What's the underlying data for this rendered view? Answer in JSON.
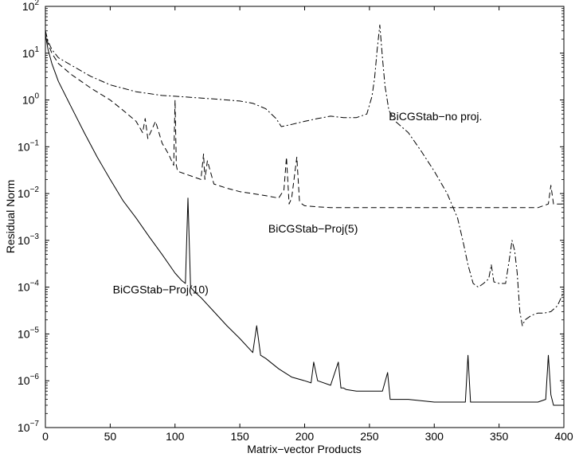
{
  "chart_data": {
    "type": "line",
    "title": "",
    "xlabel": "Matrix−vector Products",
    "ylabel": "Residual Norm",
    "xlim": [
      0,
      400
    ],
    "ylim": [
      1e-07,
      100
    ],
    "yscale": "log",
    "grid": false,
    "x_ticks": [
      "0",
      "50",
      "100",
      "150",
      "200",
      "250",
      "300",
      "350",
      "400"
    ],
    "y_tick_base": "10",
    "y_tick_exponents": [
      "−7",
      "−6",
      "−5",
      "−4",
      "−3",
      "−2",
      "−1",
      "0",
      "1",
      "2"
    ],
    "series": [
      {
        "name": "BiCGStab−no proj.",
        "style": "dashdot",
        "x": [
          0,
          2,
          5,
          10,
          20,
          35,
          50,
          70,
          90,
          100,
          110,
          130,
          150,
          160,
          170,
          178,
          182,
          190,
          200,
          210,
          220,
          230,
          240,
          248,
          252,
          254,
          256,
          258,
          260,
          262,
          265,
          270,
          280,
          290,
          300,
          310,
          318,
          322,
          326,
          330,
          334,
          338,
          342,
          344,
          346,
          350,
          355,
          358,
          360,
          362,
          364,
          366,
          368,
          370,
          375,
          380,
          385,
          390,
          395,
          400
        ],
        "y": [
          30,
          18,
          12,
          8,
          5.5,
          3.2,
          2.1,
          1.5,
          1.25,
          1.2,
          1.15,
          1.05,
          0.95,
          0.85,
          0.65,
          0.4,
          0.27,
          0.3,
          0.35,
          0.4,
          0.45,
          0.42,
          0.42,
          0.5,
          1.2,
          3.0,
          12,
          40,
          8,
          2.0,
          0.6,
          0.35,
          0.2,
          0.08,
          0.03,
          0.01,
          0.003,
          0.001,
          0.0003,
          0.00012,
          0.0001,
          0.00012,
          0.00015,
          0.0003,
          0.00013,
          0.00012,
          0.00012,
          0.0004,
          0.001,
          0.0006,
          0.0002,
          3e-05,
          1.5e-05,
          2e-05,
          2.5e-05,
          2.8e-05,
          2.8e-05,
          3e-05,
          4e-05,
          8e-05
        ]
      },
      {
        "name": "BiCGStab−Proj(5)",
        "style": "dashed",
        "x": [
          0,
          2,
          5,
          10,
          20,
          35,
          50,
          60,
          70,
          75,
          77,
          79,
          85,
          90,
          95,
          99,
          100,
          101,
          102,
          110,
          120,
          122,
          123,
          125,
          130,
          140,
          150,
          160,
          170,
          180,
          184,
          186,
          188,
          190,
          194,
          196,
          198,
          200,
          210,
          220,
          240,
          260,
          280,
          300,
          320,
          340,
          360,
          380,
          388,
          390,
          392,
          400
        ],
        "y": [
          30,
          16,
          10,
          6,
          3.5,
          1.8,
          1.0,
          0.6,
          0.35,
          0.2,
          0.4,
          0.15,
          0.35,
          0.12,
          0.07,
          0.04,
          1.0,
          0.04,
          0.03,
          0.025,
          0.02,
          0.07,
          0.02,
          0.05,
          0.016,
          0.013,
          0.011,
          0.01,
          0.009,
          0.008,
          0.012,
          0.06,
          0.006,
          0.008,
          0.06,
          0.007,
          0.006,
          0.0055,
          0.0052,
          0.005,
          0.005,
          0.005,
          0.005,
          0.005,
          0.005,
          0.005,
          0.005,
          0.005,
          0.006,
          0.015,
          0.006,
          0.006
        ]
      },
      {
        "name": "BiCGStab−Proj(10)",
        "style": "solid",
        "x": [
          0,
          2,
          5,
          10,
          20,
          30,
          40,
          50,
          60,
          70,
          80,
          90,
          100,
          105,
          108,
          110,
          112,
          115,
          120,
          130,
          140,
          150,
          160,
          163,
          166,
          170,
          180,
          190,
          200,
          205,
          207,
          210,
          220,
          226,
          228,
          230,
          232,
          240,
          250,
          260,
          264,
          266,
          268,
          280,
          300,
          320,
          324,
          326,
          328,
          330,
          340,
          350,
          360,
          380,
          386,
          388,
          390,
          392,
          395,
          400
        ],
        "y": [
          25,
          12,
          6,
          2.5,
          0.7,
          0.2,
          0.06,
          0.02,
          0.007,
          0.003,
          0.0012,
          0.0005,
          0.0002,
          0.00014,
          0.00012,
          0.008,
          0.0001,
          8e-05,
          6e-05,
          3e-05,
          1.5e-05,
          8e-06,
          4e-06,
          1.5e-05,
          3.5e-06,
          3e-06,
          1.8e-06,
          1.2e-06,
          1e-06,
          9e-07,
          2.5e-06,
          1e-06,
          8e-07,
          2.5e-06,
          7e-07,
          7e-07,
          6.5e-07,
          6e-07,
          6e-07,
          6e-07,
          1.5e-06,
          4e-07,
          4e-07,
          4e-07,
          3.5e-07,
          3.5e-07,
          3.5e-07,
          3.5e-06,
          3.5e-07,
          3.5e-07,
          3.5e-07,
          3.5e-07,
          3.5e-07,
          3.5e-07,
          4e-07,
          3.5e-06,
          5e-07,
          3e-07,
          3e-07,
          3e-07
        ]
      }
    ],
    "annotations": [
      {
        "text": "BiCGStab−no proj.",
        "x": 265,
        "y": 0.45
      },
      {
        "text": "BiCGStab−Proj(5)",
        "x": 172,
        "y": 0.0018
      },
      {
        "text": "BiCGStab−Proj(10)",
        "x": 52,
        "y": 9e-05
      }
    ]
  }
}
